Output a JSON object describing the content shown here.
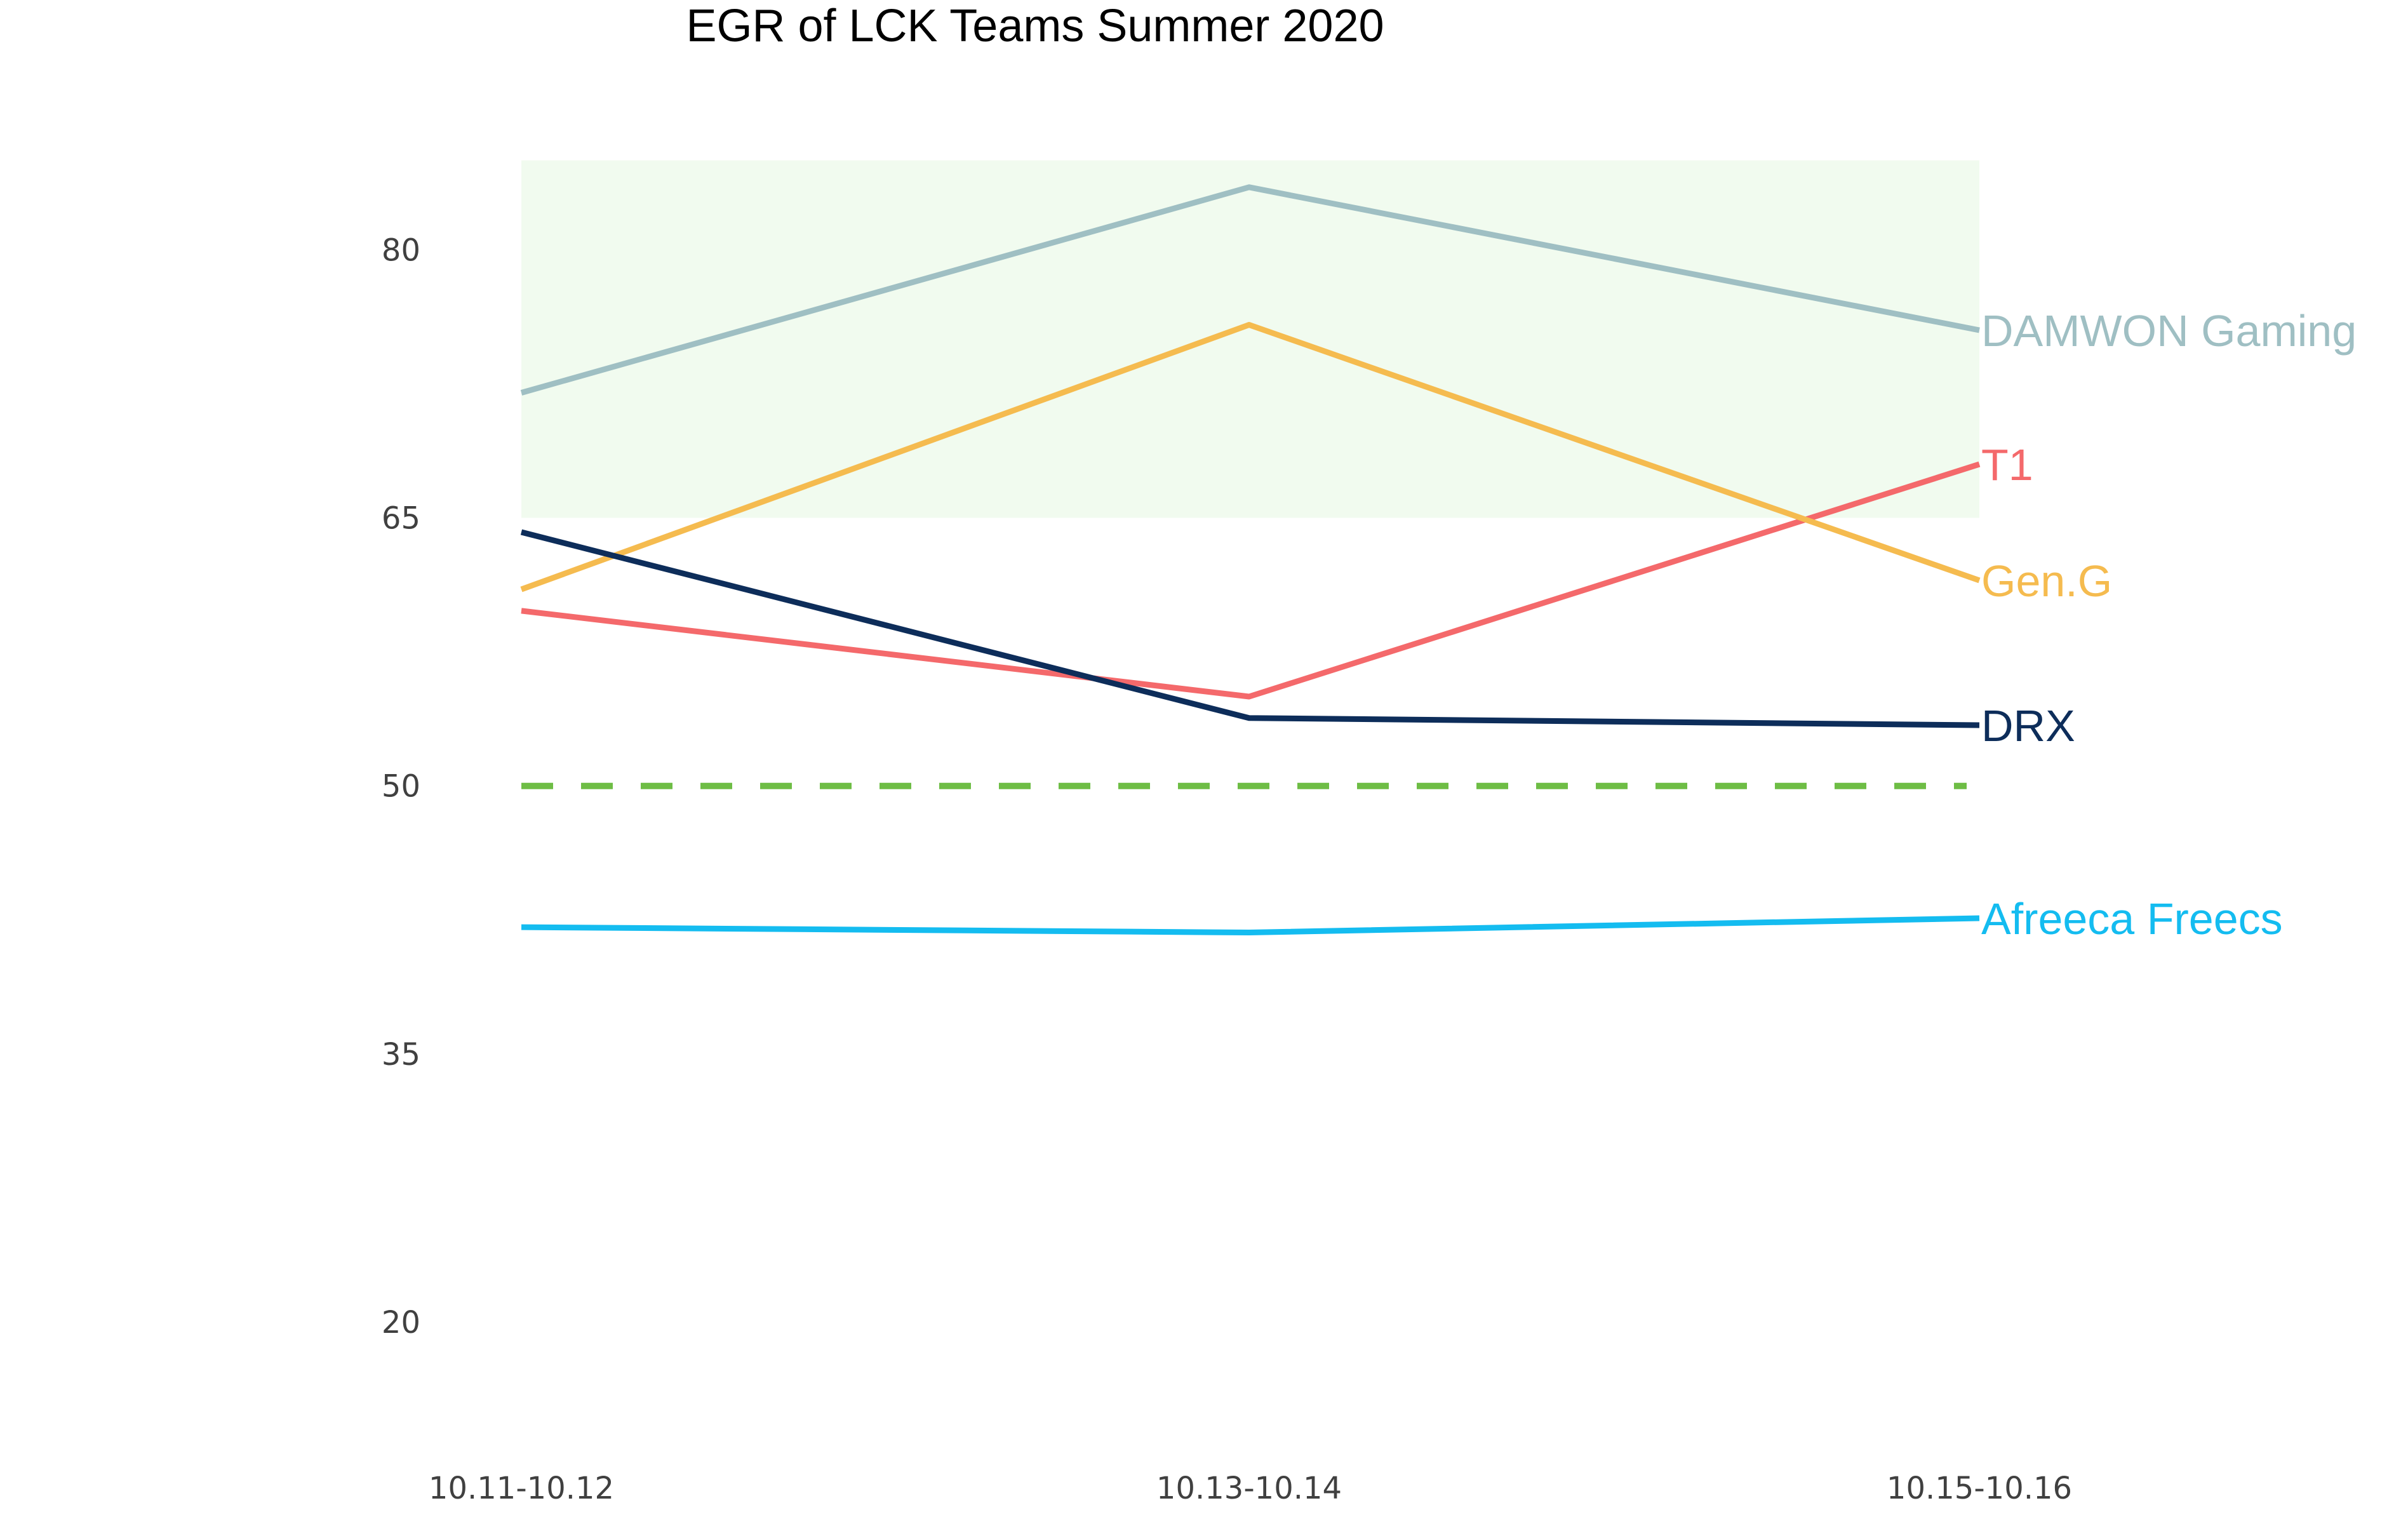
{
  "chart_data": {
    "type": "line",
    "title": "EGR of LCK Teams Summer 2020",
    "xlabel": "",
    "ylabel": "",
    "categories": [
      "10.11-10.12",
      "10.13-10.14",
      "10.15-10.16"
    ],
    "y_ticks": [
      20,
      35,
      50,
      65,
      80
    ],
    "ylim": [
      14,
      89
    ],
    "grid": false,
    "legend": "none",
    "labels_at_line_end": true,
    "highlight_band": {
      "y_from": 65,
      "y_to": 85,
      "color": "#f1fbef"
    },
    "reference_line": {
      "y": 50,
      "style": "dashed",
      "color": "#6ebd45"
    },
    "series": [
      {
        "name": "DAMWON Gaming",
        "color": "#9fbfc3",
        "values": [
          72,
          83.5,
          75.5
        ]
      },
      {
        "name": "T1",
        "color": "#f4696b",
        "values": [
          59.8,
          55,
          68
        ]
      },
      {
        "name": "Gen.G",
        "color": "#f5bb4f",
        "values": [
          61,
          75.8,
          61.5
        ]
      },
      {
        "name": "DRX",
        "color": "#0d2d5a",
        "values": [
          64.2,
          53.8,
          53.4
        ]
      },
      {
        "name": "Afreeca Freecs",
        "color": "#14bcf0",
        "values": [
          42.1,
          41.8,
          42.6
        ]
      }
    ]
  }
}
